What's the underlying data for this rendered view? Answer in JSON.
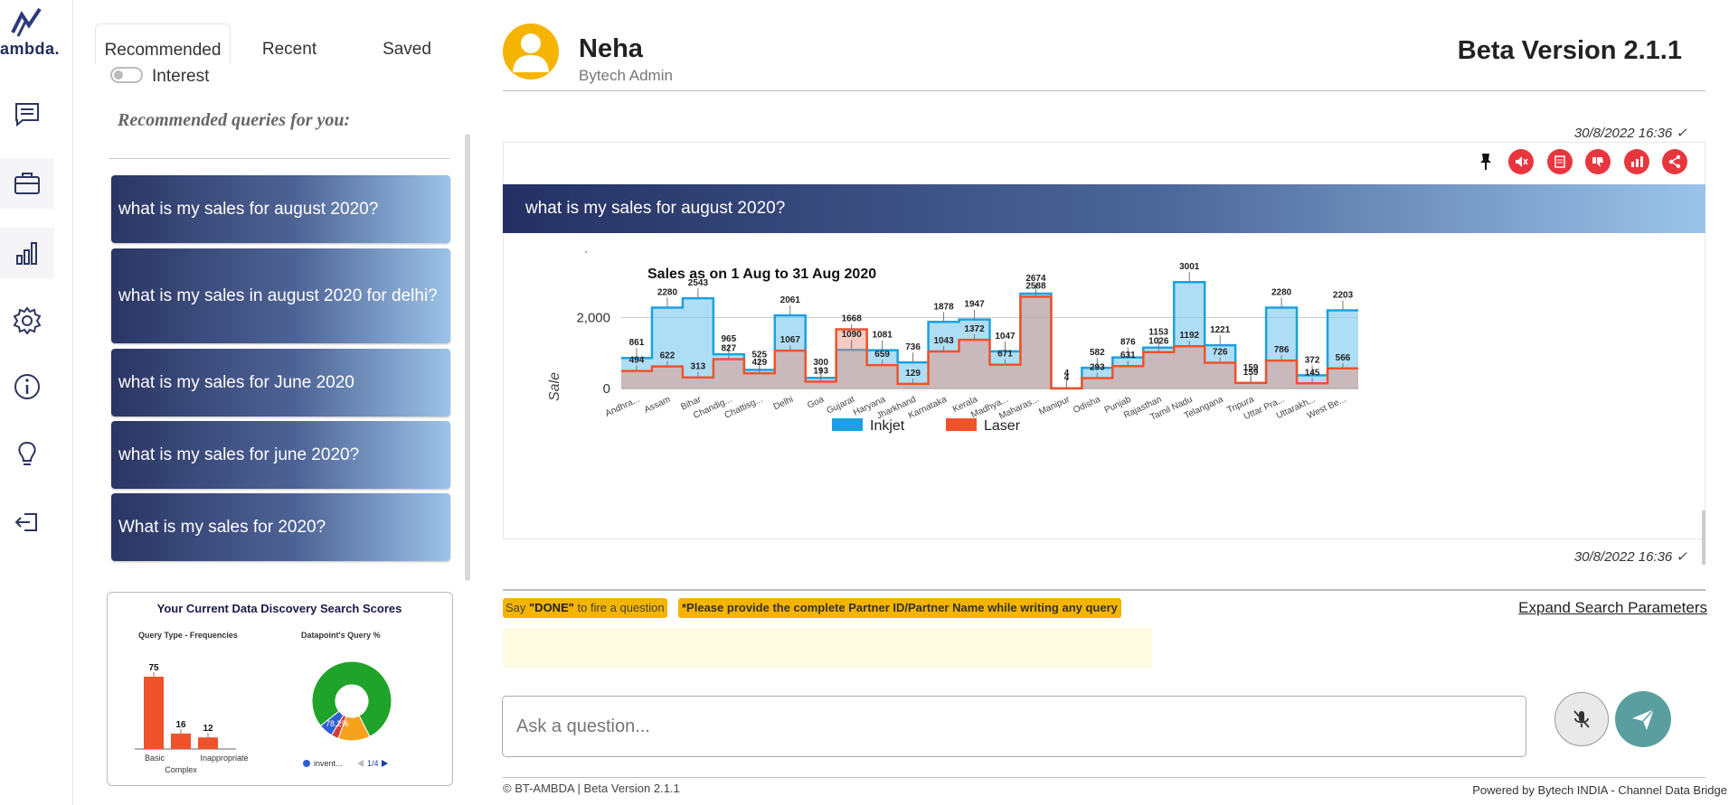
{
  "app": {
    "logo_text": "ambda."
  },
  "rail": {
    "items": [
      {
        "name": "chat-icon"
      },
      {
        "name": "briefcase-icon"
      },
      {
        "name": "bar-chart-icon"
      },
      {
        "name": "gear-icon"
      },
      {
        "name": "info-icon"
      },
      {
        "name": "lightbulb-icon"
      },
      {
        "name": "logout-icon"
      }
    ]
  },
  "tabs": {
    "recommended": "Recommended",
    "recent": "Recent",
    "saved": "Saved"
  },
  "interest_label": "Interest",
  "recommended_title": "Recommended queries for you:",
  "queries": [
    "what is my sales for august 2020?",
    "what is my sales in august 2020 for delhi?",
    "what is my sales for June 2020",
    "what is my sales for june 2020?",
    "What is my sales for 2020?"
  ],
  "scores": {
    "title": "Your Current Data Discovery Search Scores",
    "freq_title": "Query Type - Frequencies",
    "freq_categories": [
      "Basic",
      "Complex",
      "Inappropriate"
    ],
    "freq_values": [
      75,
      16,
      12
    ],
    "pie_title": "Datapoint's Query %",
    "pie_label": "78.2%",
    "pie_legend": "invent...",
    "pager": "1/4",
    "colors": {
      "bar": "#f0522b",
      "pie_main": "#1fa32a",
      "pie_orange": "#f7a21b",
      "pie_blue": "#2e5fd6",
      "pie_red": "#d63a3a"
    }
  },
  "user": {
    "name": "Neha",
    "role": "Bytech Admin"
  },
  "version": "Beta Version 2.1.1",
  "message": {
    "timestamp_top": "30/8/2022 16:36 ✓",
    "question": "what is my sales for august 2020?",
    "timestamp_bottom": "30/8/2022 16:36 ✓"
  },
  "actions": [
    "pin-icon",
    "mute-icon",
    "document-icon",
    "dislike-icon",
    "chart-icon",
    "share-icon"
  ],
  "chart_data": {
    "type": "area",
    "title": "Sales as on 1 Aug to 31 Aug 2020",
    "ylabel": "Sale",
    "ylim": [
      0,
      4000
    ],
    "yticks": [
      "0",
      "2,000",
      "4,000"
    ],
    "categories": [
      "Andhra...",
      "Assam",
      "Bihar",
      "Chandig...",
      "Chattisg...",
      "Delhi",
      "Goa",
      "Gujarat",
      "Haryana",
      "Jharkhand",
      "Karnataka",
      "Kerala",
      "Madhya...",
      "Maharas...",
      "Manipur",
      "Odisha",
      "Punjab",
      "Rajasthan",
      "Tamil Nadu",
      "Telangana",
      "Tripura",
      "Uttar Pra...",
      "Uttarakh...",
      "West Be..."
    ],
    "series": [
      {
        "name": "Inkjet",
        "color": "#1ba1e2",
        "values": [
          861,
          2280,
          2543,
          965,
          525,
          2061,
          300,
          1090,
          1081,
          736,
          1878,
          1947,
          1047,
          2674,
          4,
          582,
          876,
          1153,
          3001,
          1221,
          159,
          2280,
          372,
          2203
        ]
      },
      {
        "name": "Laser",
        "color": "#f0522b",
        "values": [
          494,
          622,
          313,
          827,
          429,
          1067,
          193,
          1668,
          659,
          129,
          1043,
          1372,
          671,
          2588,
          4,
          293,
          631,
          1026,
          1192,
          726,
          159,
          786,
          145,
          566
        ]
      }
    ],
    "legend": "bottom"
  },
  "composer": {
    "say_prefix": "Say ",
    "say_done": "\"DONE\"",
    "say_suffix": " to fire a question",
    "note": "*Please provide the complete Partner ID/Partner Name while writing any query",
    "expand": "Expand Search Parameters",
    "placeholder": "Ask a question..."
  },
  "footer": {
    "copyright": "© BT-AMBDA | Beta Version 2.1.1",
    "powered": "Powered by Bytech INDIA - Channel Data Bridge"
  }
}
